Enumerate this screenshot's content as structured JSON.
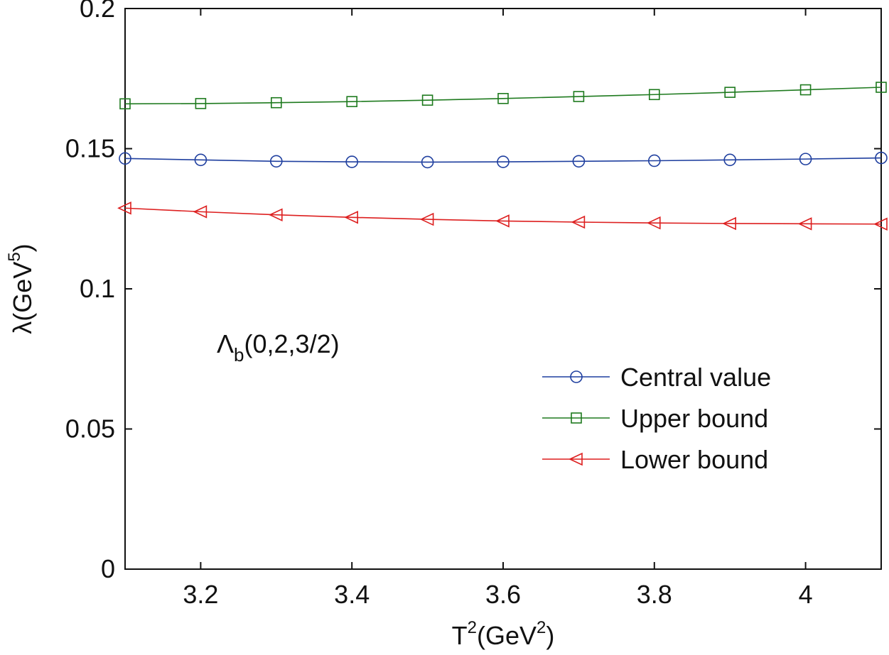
{
  "chart_data": {
    "type": "line",
    "xlabel": "T",
    "xlabel_sup": "2",
    "xlabel_rest_open": "(GeV",
    "xlabel_rest_sup": "2",
    "xlabel_rest_close": ")",
    "ylabel": "λ(GeV",
    "ylabel_sup": "5",
    "ylabel_close": ")",
    "xlim": [
      3.1,
      4.1
    ],
    "ylim": [
      0,
      0.2
    ],
    "x_ticks": [
      3.2,
      3.4,
      3.6,
      3.8,
      4.0
    ],
    "x_tick_labels": [
      "3.2",
      "3.4",
      "3.6",
      "3.8",
      "4"
    ],
    "y_ticks": [
      0,
      0.05,
      0.1,
      0.15,
      0.2
    ],
    "y_tick_labels": [
      "0",
      "0.05",
      "0.1",
      "0.15",
      "0.2"
    ],
    "grid": false,
    "legend_position": "lower-right",
    "annotation": {
      "main": "Λ",
      "sub": "b",
      "rest": "(0,2,3/2)"
    },
    "x": [
      3.1,
      3.2,
      3.3,
      3.4,
      3.5,
      3.6,
      3.7,
      3.8,
      3.9,
      4.0,
      4.1
    ],
    "series": [
      {
        "name": "Central value",
        "color": "#1f3f9f",
        "marker": "circle",
        "values": [
          0.1465,
          0.146,
          0.1455,
          0.1453,
          0.1452,
          0.1453,
          0.1455,
          0.1457,
          0.146,
          0.1463,
          0.1467
        ]
      },
      {
        "name": "Upper bound",
        "color": "#1e7a1e",
        "marker": "square",
        "values": [
          0.166,
          0.1661,
          0.1664,
          0.1668,
          0.1673,
          0.1679,
          0.1686,
          0.1693,
          0.1701,
          0.171,
          0.1719
        ]
      },
      {
        "name": "Lower bound",
        "color": "#dd1f1f",
        "marker": "triangle-left",
        "values": [
          0.1288,
          0.1275,
          0.1264,
          0.1255,
          0.1248,
          0.1242,
          0.1238,
          0.1235,
          0.1233,
          0.1232,
          0.1231
        ]
      }
    ]
  }
}
